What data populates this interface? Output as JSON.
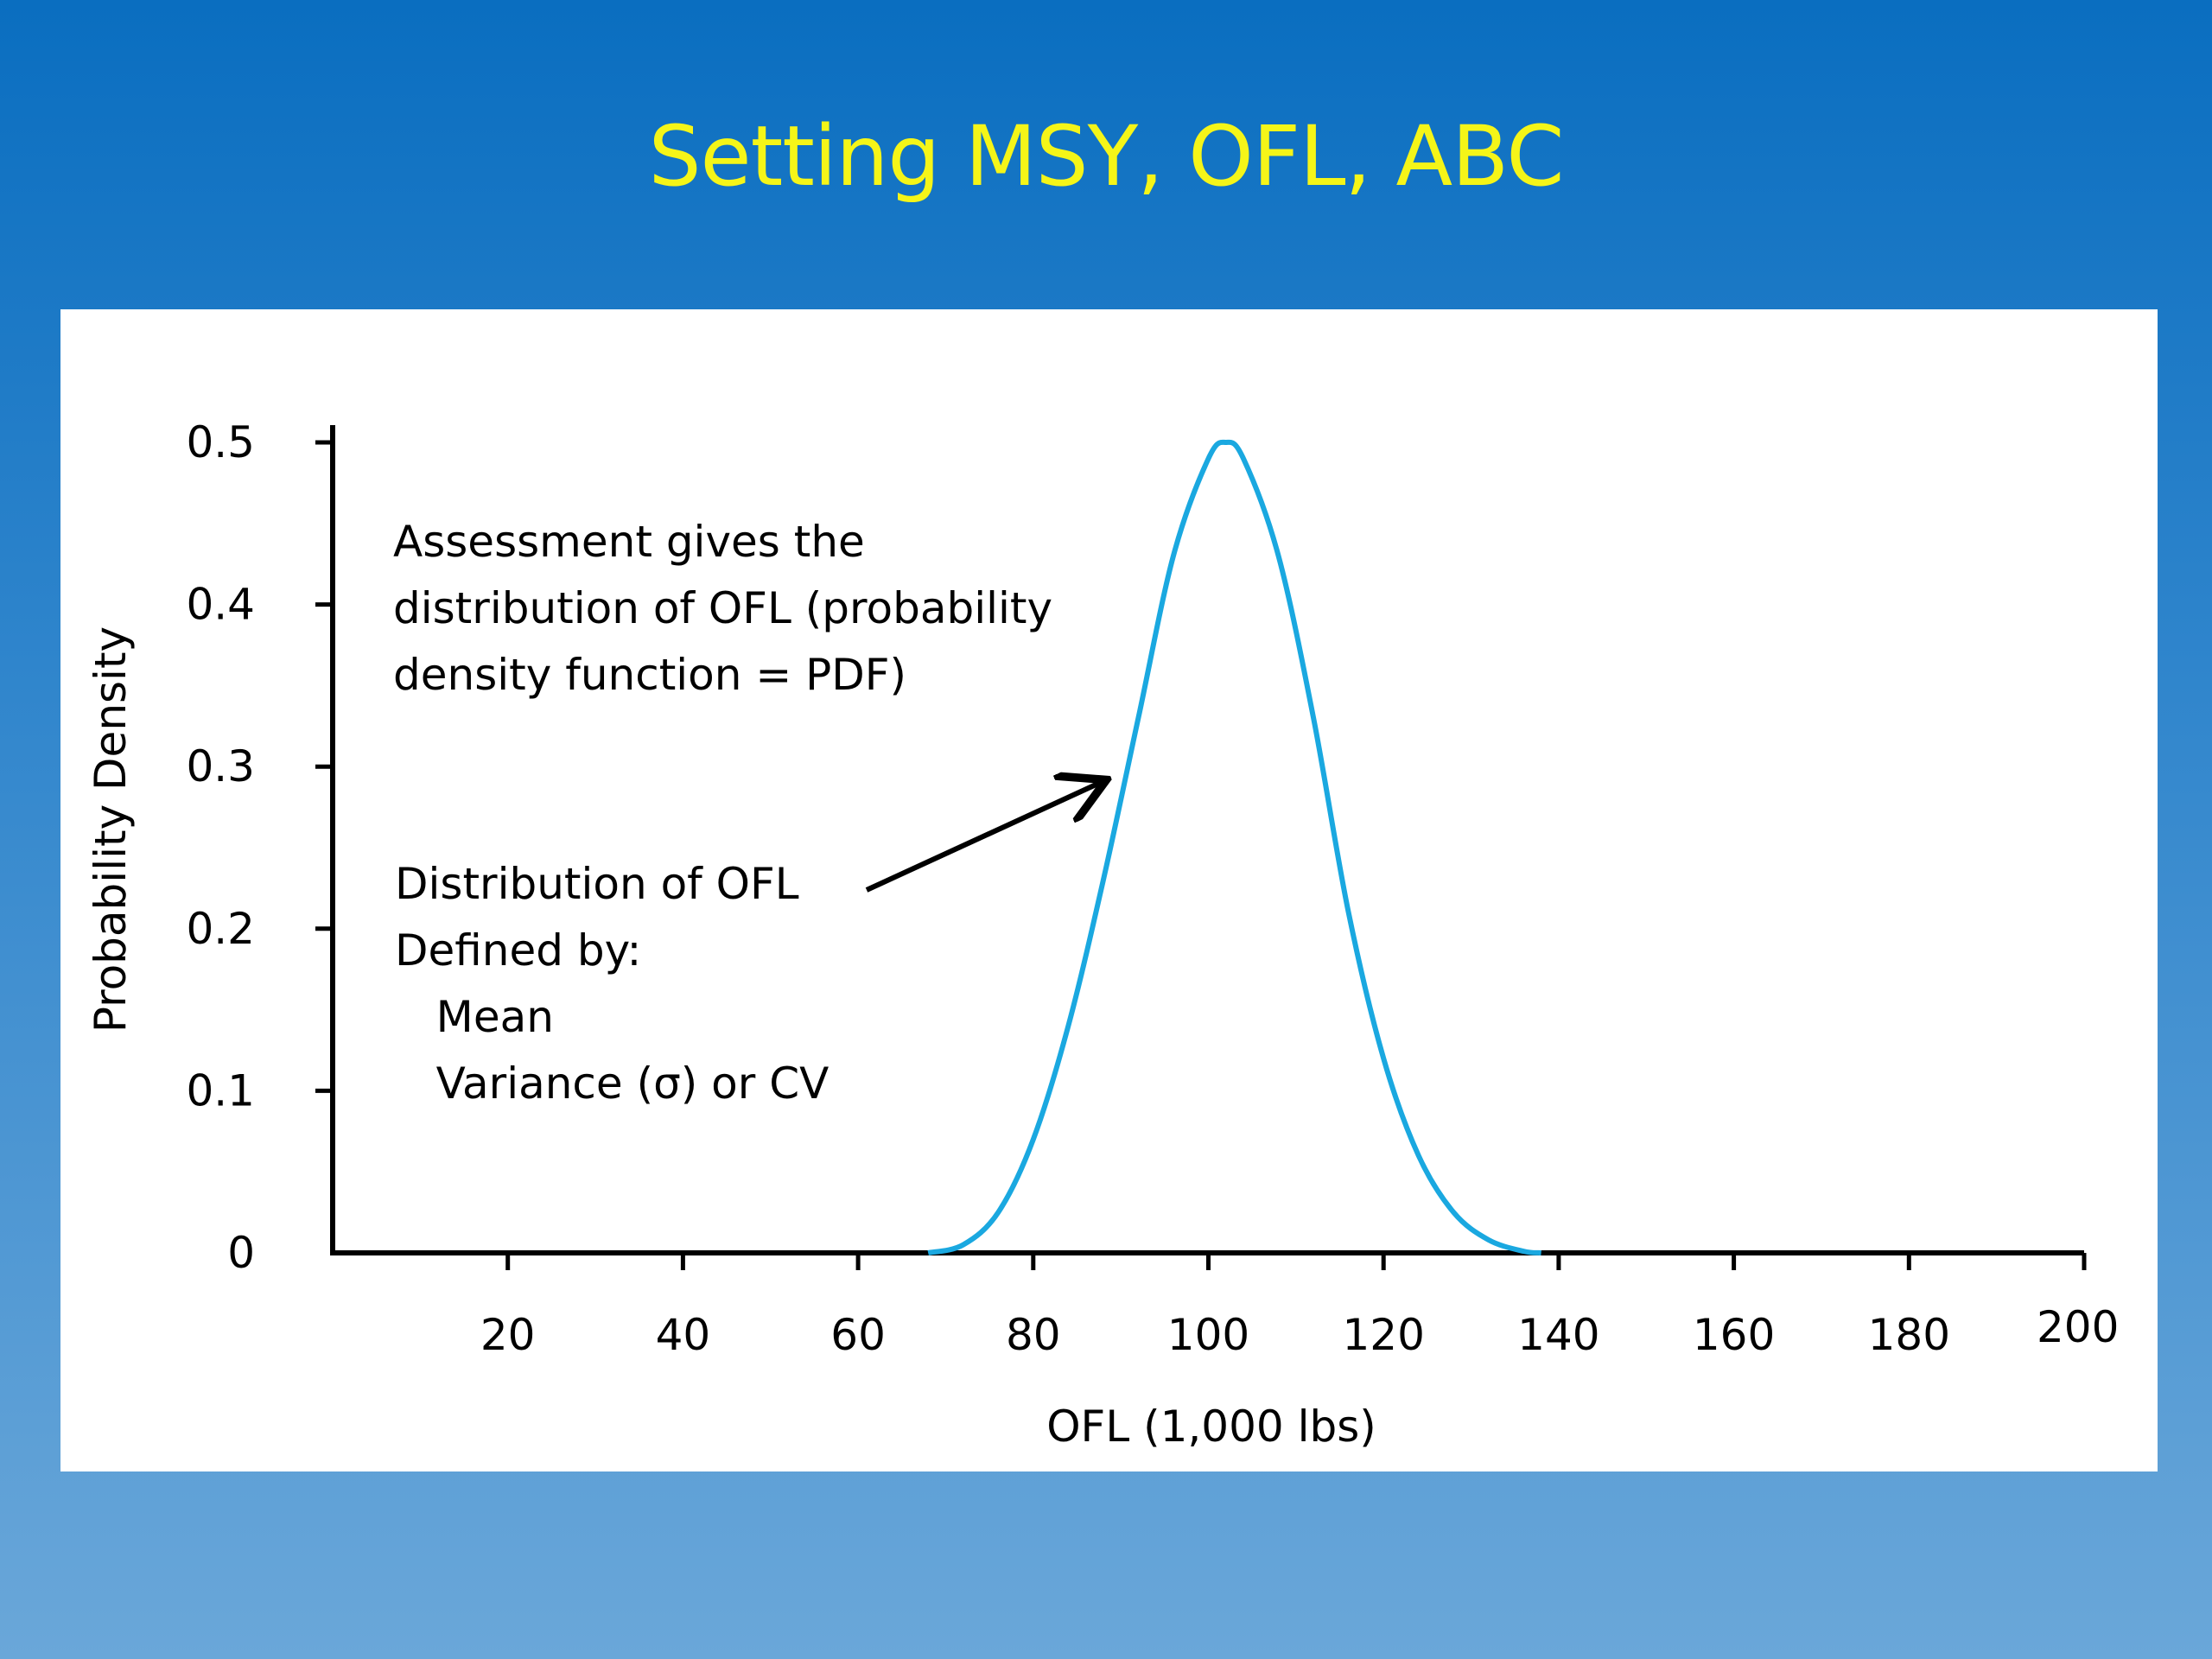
{
  "slide": {
    "title": "Setting MSY, OFL, ABC"
  },
  "colors": {
    "background_top": "#0a6ec0",
    "background_bottom": "#6aa7d9",
    "title": "#f5f518",
    "curve": "#1aa8e0",
    "axis": "#000000",
    "panel": "#ffffff"
  },
  "annotations": {
    "assessment": [
      "Assessment gives the",
      "distribution of OFL (probability",
      "density function = PDF)"
    ],
    "definition": [
      "Distribution of OFL",
      "Defined by:",
      "   Mean",
      "   Variance (σ) or CV"
    ]
  },
  "chart_data": {
    "type": "line",
    "title": "",
    "xlabel": "OFL (1,000 lbs)",
    "ylabel": "Probability Density",
    "xlim": [
      0,
      200
    ],
    "ylim": [
      0,
      0.5
    ],
    "x_ticks": [
      20,
      40,
      60,
      80,
      100,
      120,
      140,
      160,
      180,
      200
    ],
    "y_ticks": [
      0,
      0.1,
      0.2,
      0.3,
      0.4,
      0.5
    ],
    "y_tick_labels": [
      "0",
      "0.1",
      "0.2",
      "0.3",
      "0.4",
      "0.5"
    ],
    "grid": false,
    "series": [
      {
        "x": [
          68,
          72,
          76,
          80,
          84,
          88,
          92,
          96,
          100,
          102,
          104,
          108,
          112,
          116,
          120,
          124,
          128,
          132,
          136,
          138
        ],
        "y": [
          0.0,
          0.005,
          0.025,
          0.07,
          0.14,
          0.23,
          0.33,
          0.43,
          0.49,
          0.5,
          0.49,
          0.43,
          0.33,
          0.21,
          0.12,
          0.06,
          0.025,
          0.008,
          0.001,
          0.0
        ]
      }
    ]
  }
}
